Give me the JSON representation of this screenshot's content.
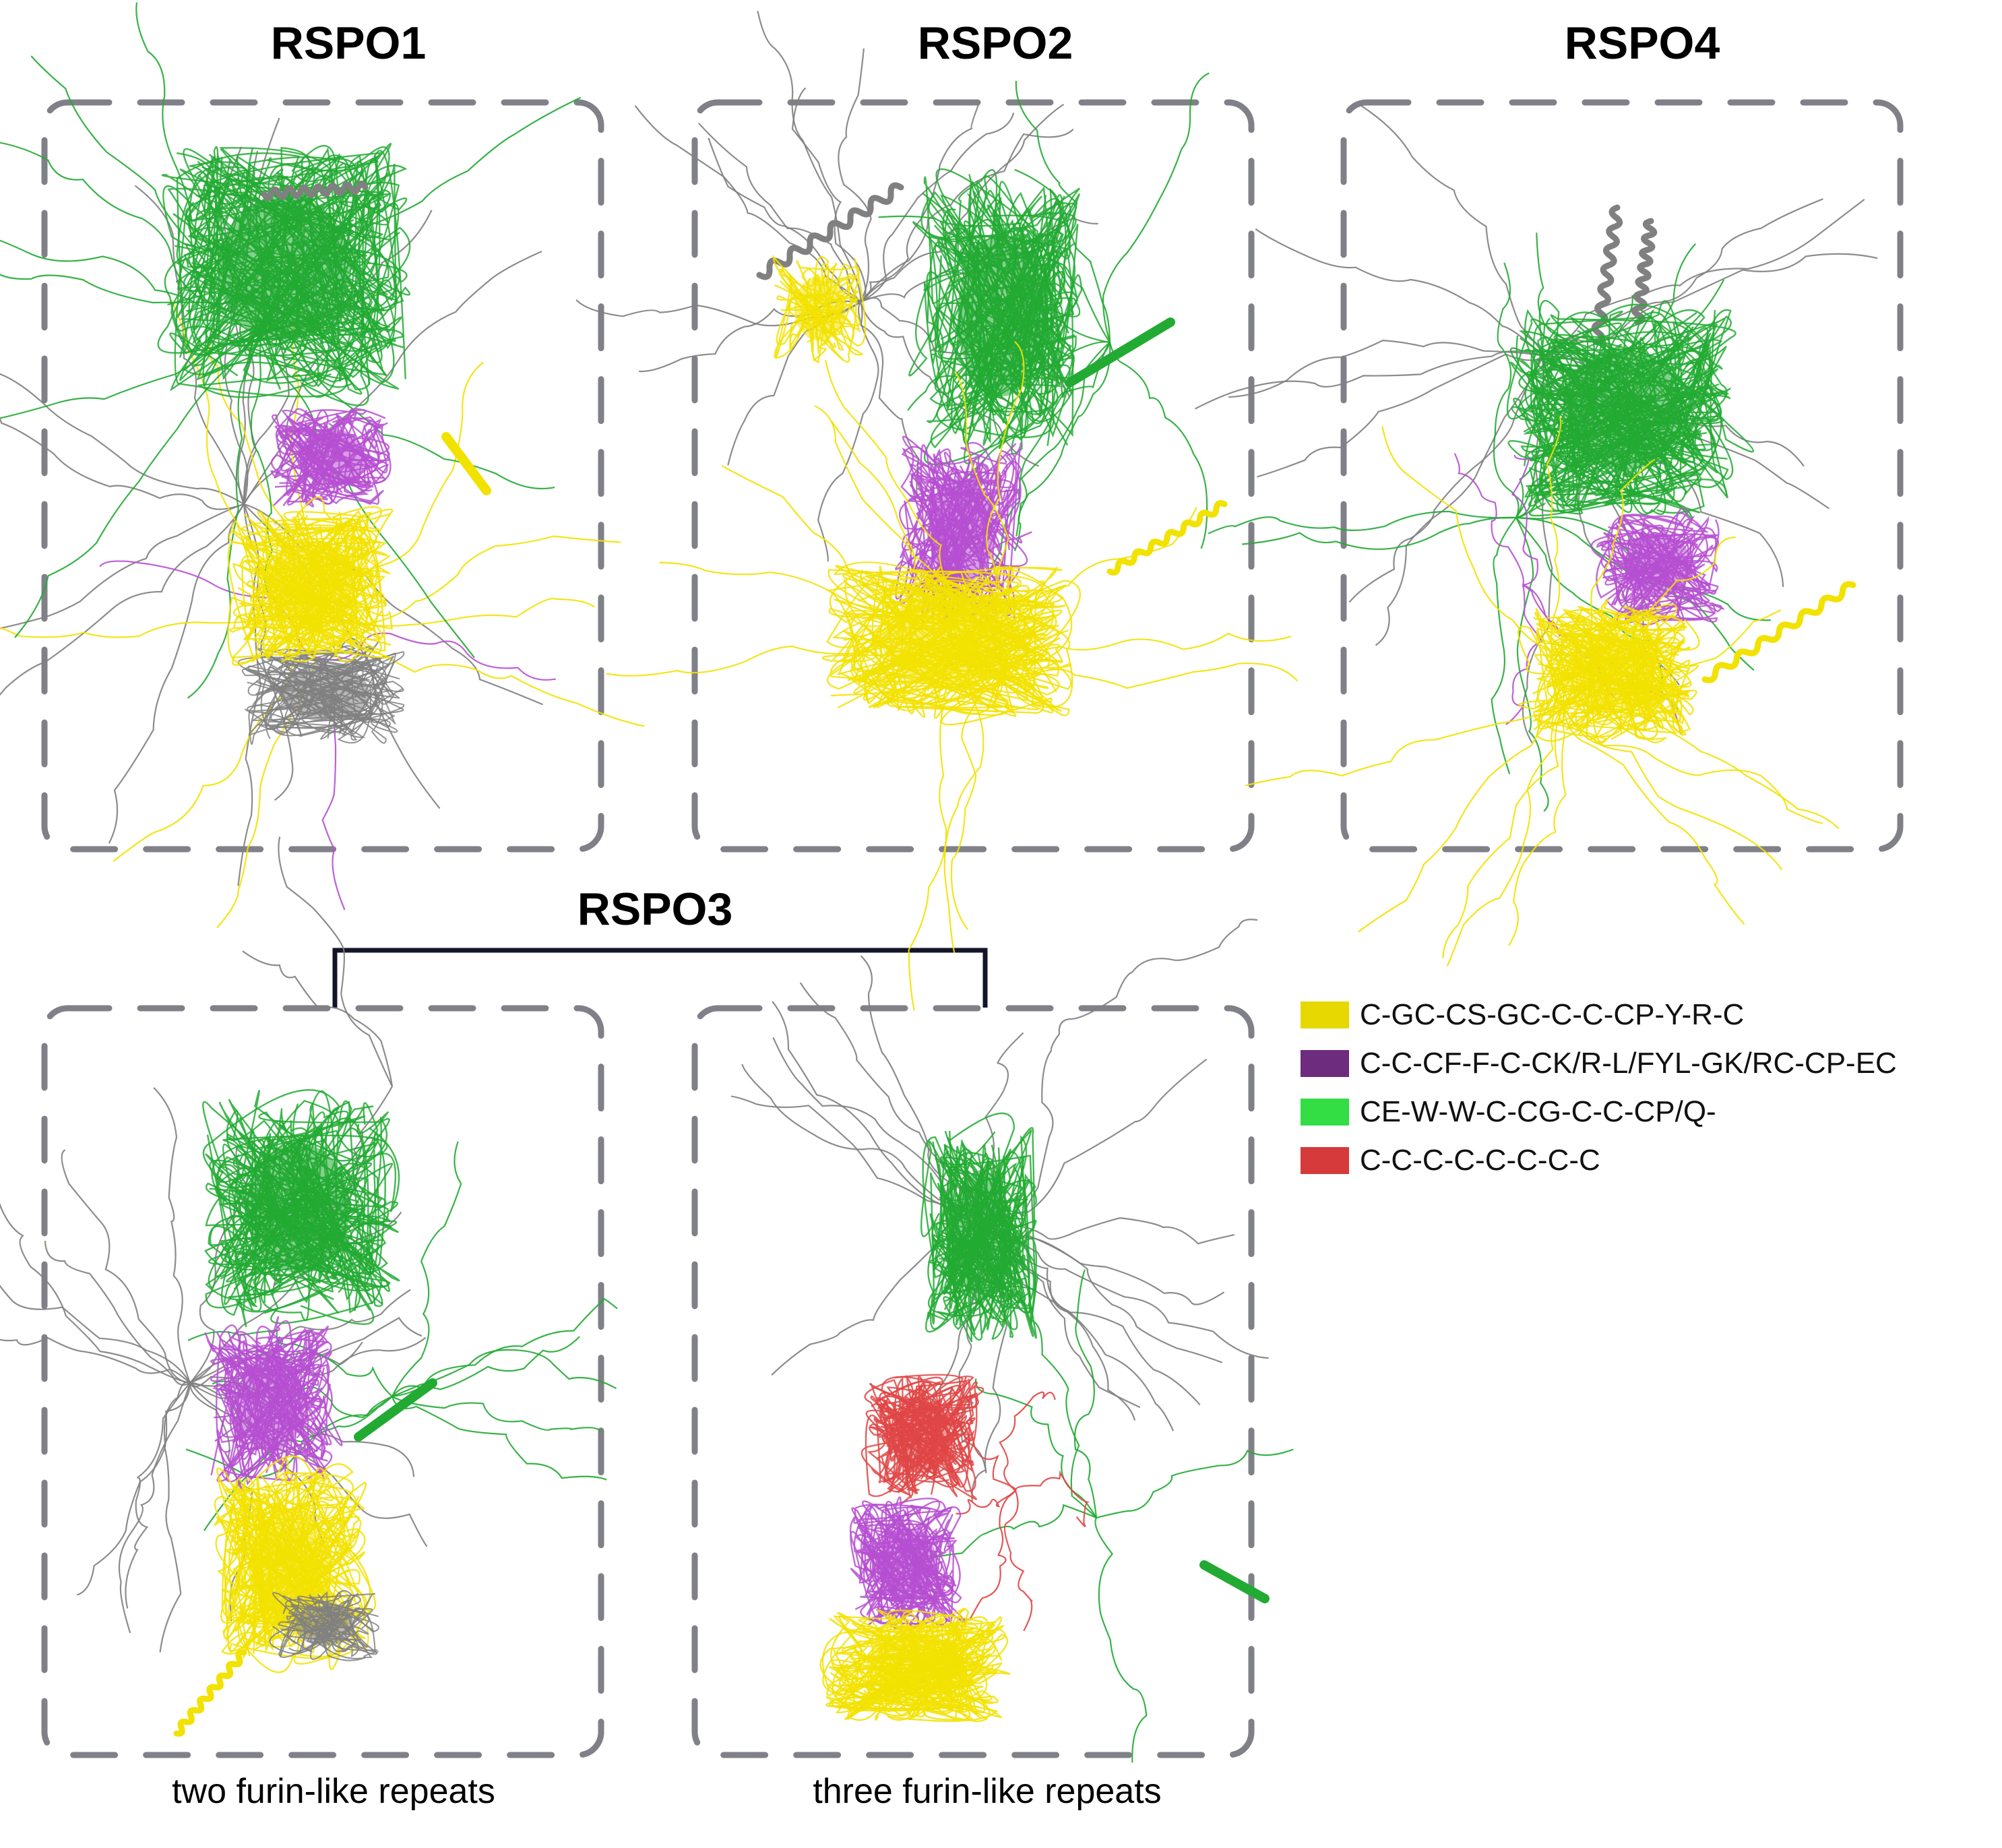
{
  "titles": {
    "rspo1": "RSPO1",
    "rspo2": "RSPO2",
    "rspo4": "RSPO4",
    "rspo3": "RSPO3"
  },
  "captions": {
    "left": "two furin-like repeats",
    "right": "three furin-like repeats"
  },
  "legend": [
    {
      "label": "C-GC-CS-GC-C-C-CP-Y-R-C",
      "color": "#e6d800"
    },
    {
      "label": "C-C-CF-F-C-CK/R-L/FYL-GK/RC-CP-EC",
      "color": "#6e2c7e"
    },
    {
      "label": "CE-W-W-C-CG-C-C-CP/Q-",
      "color": "#33dd44"
    },
    {
      "label": "C-C-C-C-C-C-C-C",
      "color": "#d63a3a"
    }
  ],
  "colors": {
    "yellow": "#f2e200",
    "purple": "#b64fd1",
    "green": "#22aa33",
    "red": "#e04545",
    "gray": "#808080",
    "frame": "#808088"
  }
}
